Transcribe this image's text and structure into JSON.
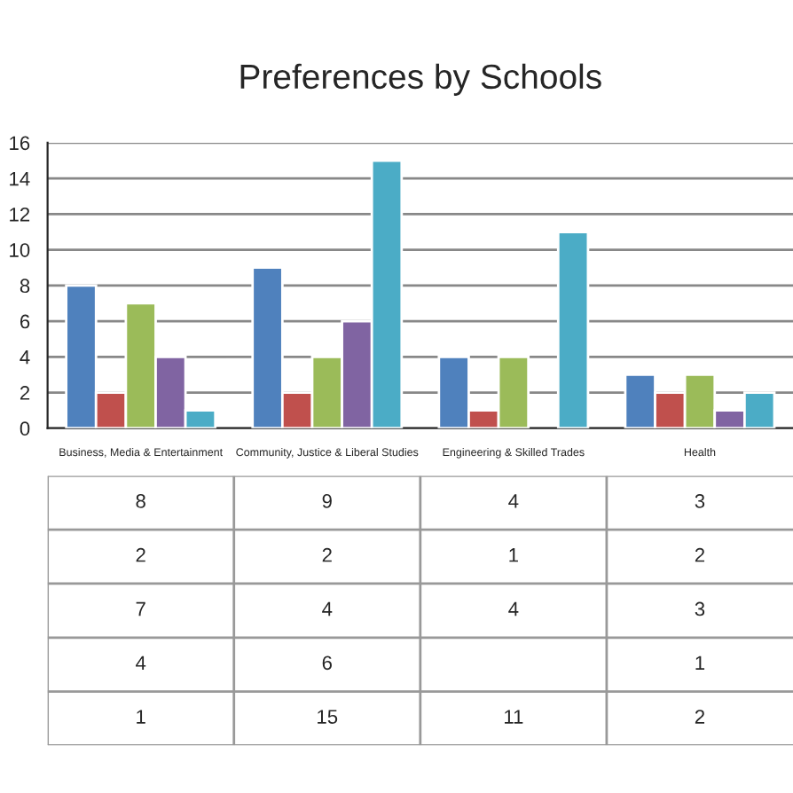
{
  "chart_data": {
    "type": "bar",
    "title": "Preferences by Schools",
    "categories": [
      "Business, Media & Entertainment",
      "Community, Justice & Liberal Studies",
      "Engineering & Skilled Trades",
      "Health"
    ],
    "series": [
      {
        "color": "#4f81bd",
        "values": [
          8,
          9,
          4,
          3
        ]
      },
      {
        "color": "#c0504d",
        "values": [
          2,
          2,
          1,
          2
        ]
      },
      {
        "color": "#9bbb59",
        "values": [
          7,
          4,
          4,
          3
        ]
      },
      {
        "color": "#8064a2",
        "values": [
          4,
          6,
          null,
          1
        ]
      },
      {
        "color": "#4bacc6",
        "values": [
          1,
          15,
          11,
          2
        ]
      }
    ],
    "ylim": [
      0,
      16
    ],
    "yticks": [
      0,
      2,
      4,
      6,
      8,
      10,
      12,
      14,
      16
    ],
    "grid": "y",
    "data_labels": true
  }
}
